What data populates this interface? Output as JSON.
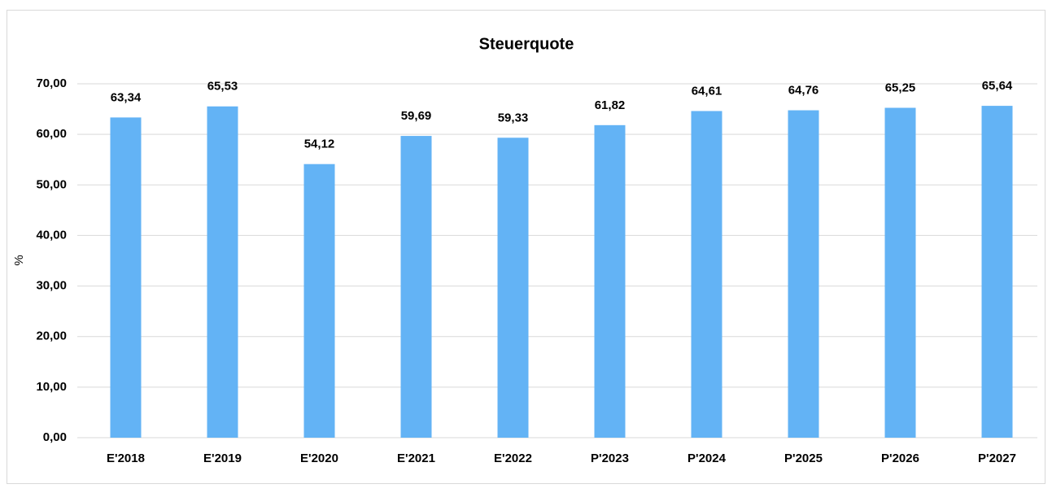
{
  "chart_data": {
    "type": "bar",
    "title": "Steuerquote",
    "y_label": "%",
    "categories": [
      "E'2018",
      "E'2019",
      "E'2020",
      "E'2021",
      "E'2022",
      "P'2023",
      "P'2024",
      "P'2025",
      "P'2026",
      "P'2027"
    ],
    "values": [
      63.34,
      65.53,
      54.12,
      59.69,
      59.33,
      61.82,
      64.61,
      64.76,
      65.25,
      65.64
    ],
    "value_labels": [
      "63,34",
      "65,53",
      "54,12",
      "59,69",
      "59,33",
      "61,82",
      "64,61",
      "64,76",
      "65,25",
      "65,64"
    ],
    "color": "#63b3f5",
    "ylim": [
      0,
      70
    ],
    "yticks": [
      {
        "value": 0,
        "label": "0,00"
      },
      {
        "value": 10,
        "label": "10,00"
      },
      {
        "value": 20,
        "label": "20,00"
      },
      {
        "value": 30,
        "label": "30,00"
      },
      {
        "value": 40,
        "label": "40,00"
      },
      {
        "value": 50,
        "label": "50,00"
      },
      {
        "value": 60,
        "label": "60,00"
      },
      {
        "value": 70,
        "label": "70,00"
      }
    ],
    "grid": true
  }
}
